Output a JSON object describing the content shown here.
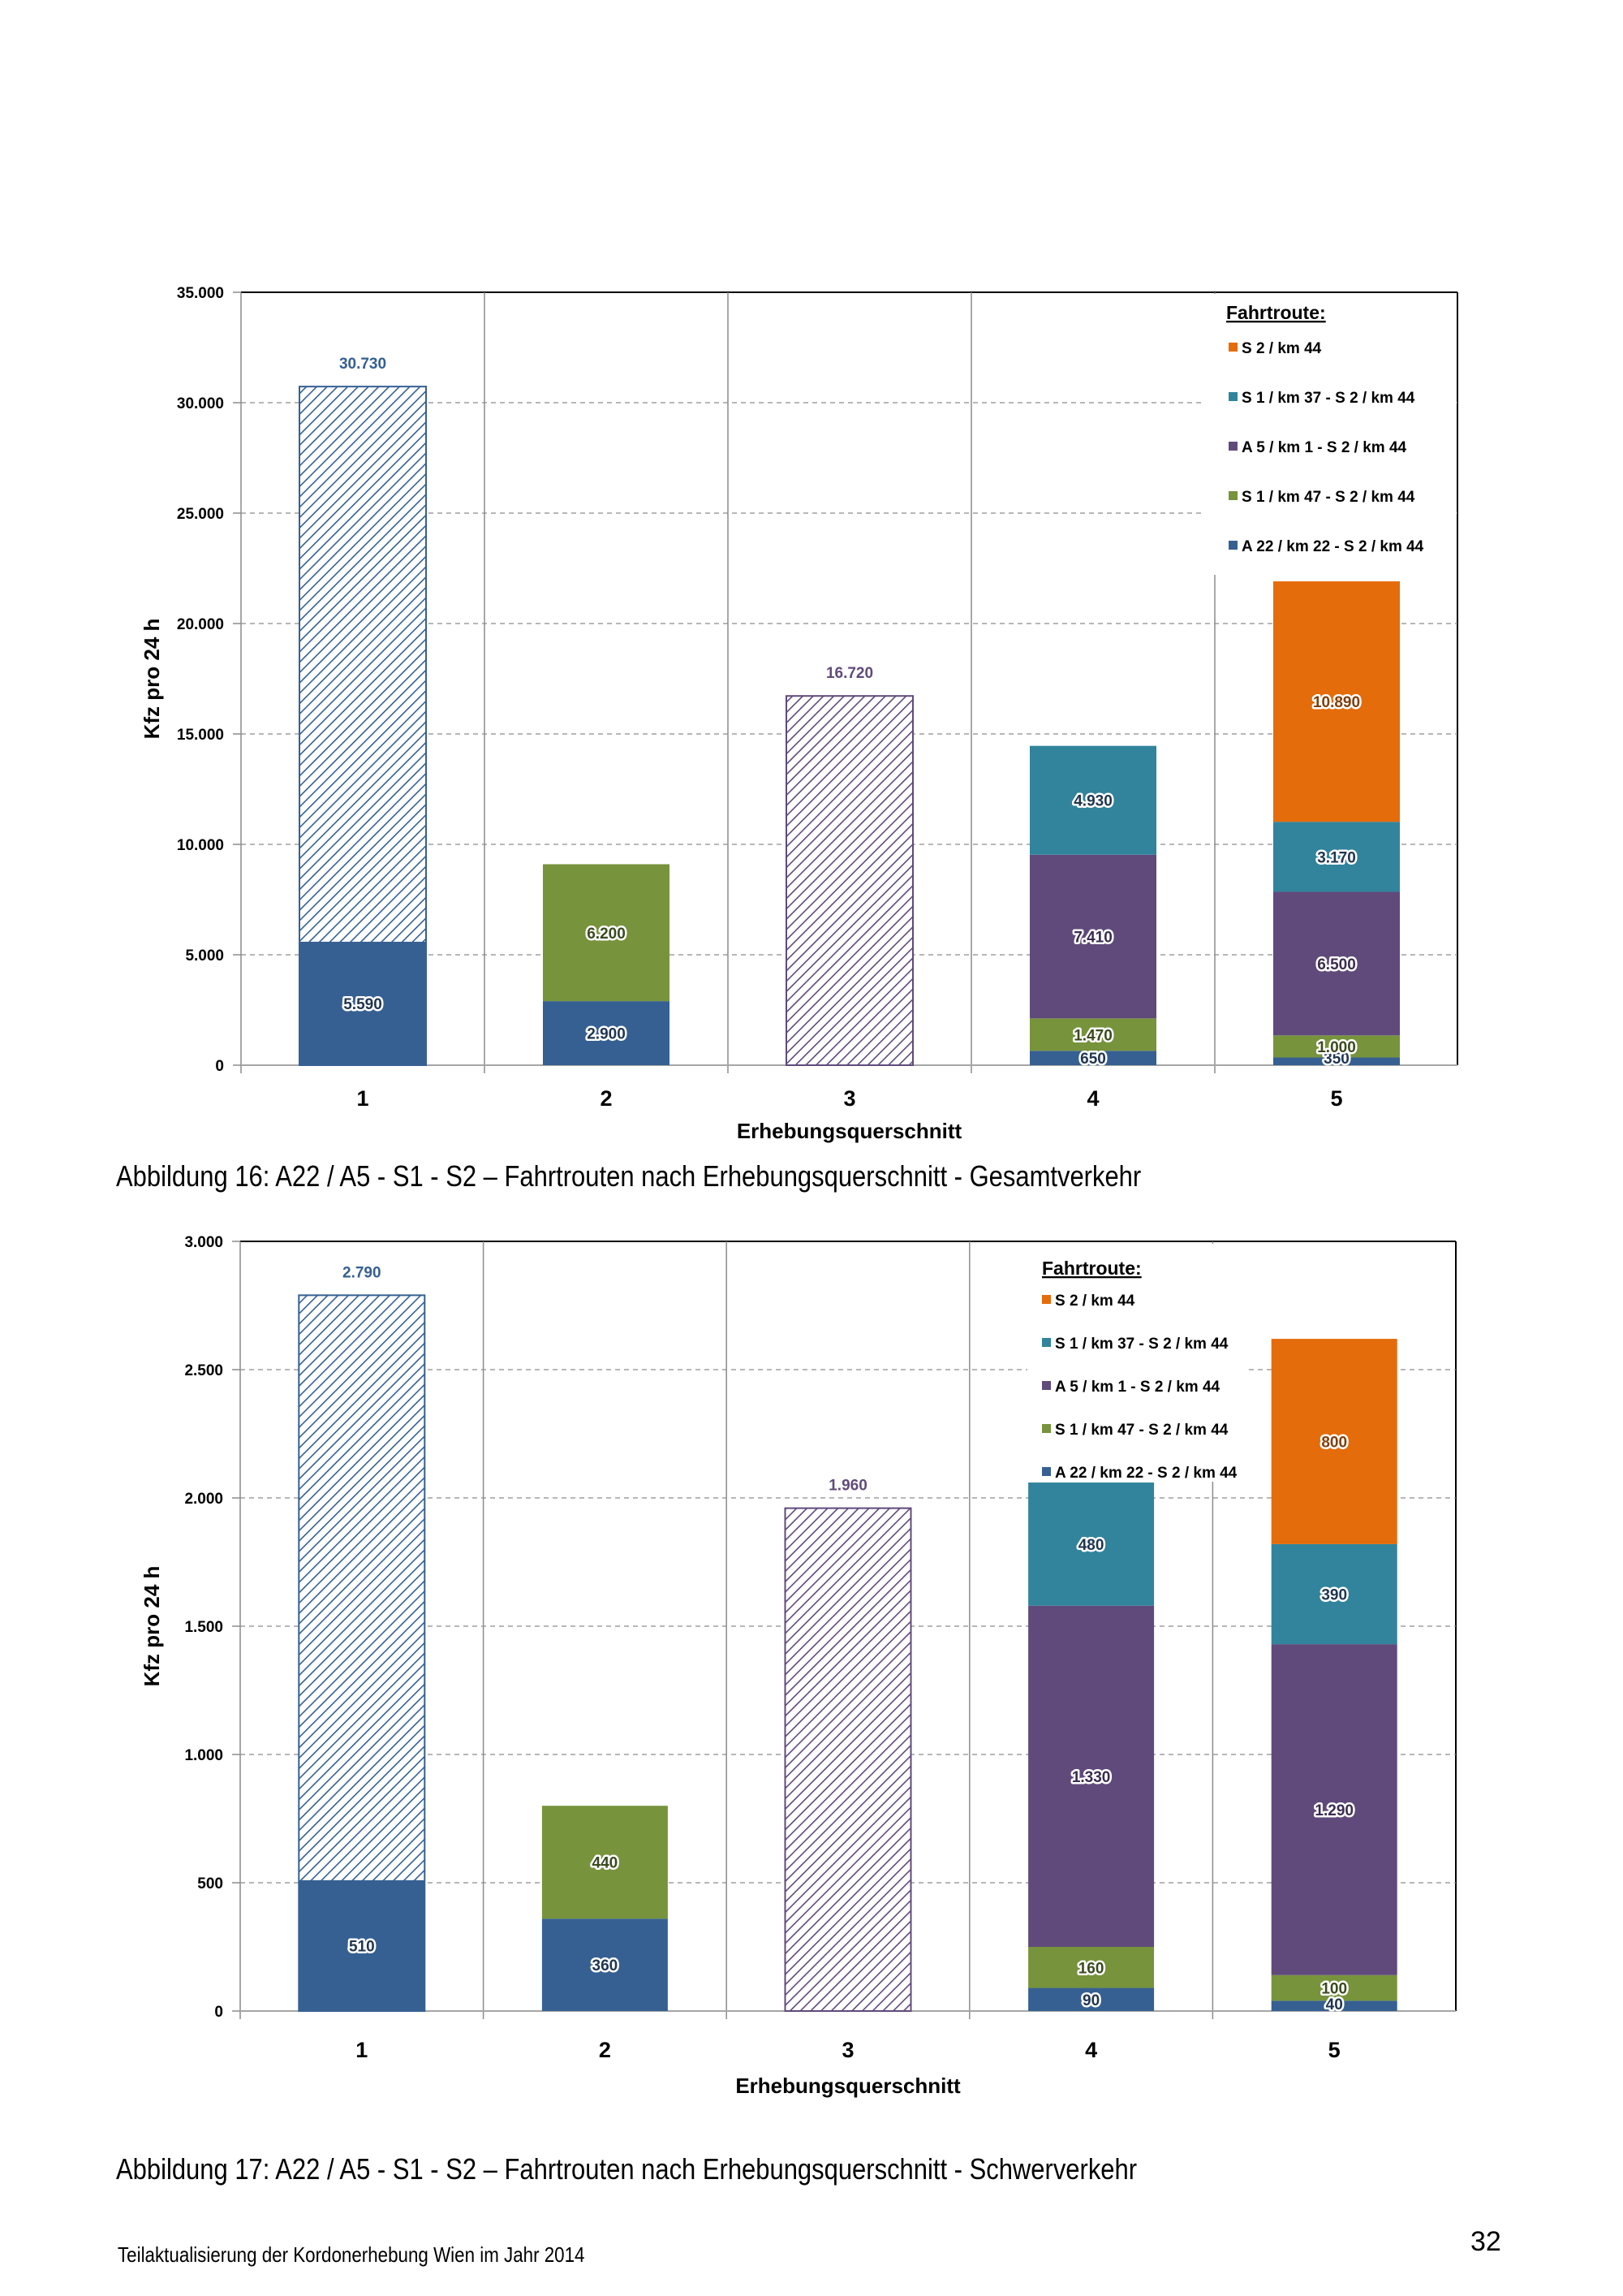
{
  "series_colors": {
    "A22": "#366092",
    "S1_47": "#77933C",
    "A5": "#604A7B",
    "S1_37": "#31849B",
    "S2": "#E46C0A"
  },
  "chart_data": [
    {
      "type": "bar",
      "stacked": true,
      "title": "",
      "xlabel": "Erhebungsquerschnitt",
      "ylabel": "Kfz pro 24 h",
      "ylim": [
        0,
        35000
      ],
      "yticks": [
        0,
        5000,
        10000,
        15000,
        20000,
        25000,
        30000,
        35000
      ],
      "ytick_labels": [
        "0",
        "5.000",
        "10.000",
        "15.000",
        "20.000",
        "25.000",
        "30.000",
        "35.000"
      ],
      "grid": "horizontal dashed",
      "legend_title": "Fahrtroute:",
      "legend_position": "top-right",
      "categories": [
        "1",
        "2",
        "3",
        "4",
        "5"
      ],
      "series": [
        {
          "key": "A22",
          "name": "A 22 / km 22 - S 2 / km 44",
          "values": [
            5590,
            2900,
            null,
            650,
            350
          ],
          "labels": [
            "5.590",
            "2.900",
            "",
            "650",
            "350"
          ]
        },
        {
          "key": "S1_47",
          "name": "S 1 / km 47 - S 2 / km 44",
          "values": [
            null,
            6200,
            null,
            1470,
            1000
          ],
          "labels": [
            "",
            "6.200",
            "",
            "1.470",
            "1.000"
          ]
        },
        {
          "key": "A5",
          "name": "A 5 / km 1 - S 2 / km 44",
          "values": [
            null,
            null,
            null,
            7410,
            6500
          ],
          "labels": [
            "",
            "",
            "",
            "7.410",
            "6.500"
          ]
        },
        {
          "key": "S1_37",
          "name": "S 1 / km 37 - S 2 / km 44",
          "values": [
            null,
            null,
            null,
            4930,
            3170
          ],
          "labels": [
            "",
            "",
            "",
            "4.930",
            "3.170"
          ]
        },
        {
          "key": "S2",
          "name": "S 2 / km 44",
          "values": [
            null,
            null,
            null,
            null,
            10890
          ],
          "labels": [
            "",
            "",
            "",
            "",
            "10.890"
          ]
        }
      ],
      "hatched_totals": [
        {
          "category": "1",
          "value": 30730,
          "label": "30.730",
          "color": "#366092"
        },
        {
          "category": "3",
          "value": 16720,
          "label": "16.720",
          "color": "#604A7B"
        }
      ],
      "legend_order": [
        "S2",
        "S1_37",
        "A5",
        "S1_47",
        "A22"
      ]
    },
    {
      "type": "bar",
      "stacked": true,
      "title": "",
      "xlabel": "Erhebungsquerschnitt",
      "ylabel": "Kfz pro 24 h",
      "ylim": [
        0,
        3000
      ],
      "yticks": [
        0,
        500,
        1000,
        1500,
        2000,
        2500,
        3000
      ],
      "ytick_labels": [
        "0",
        "500",
        "1.000",
        "1.500",
        "2.000",
        "2.500",
        "3.000"
      ],
      "grid": "horizontal dashed",
      "legend_title": "Fahrtroute:",
      "legend_position": "top-right",
      "categories": [
        "1",
        "2",
        "3",
        "4",
        "5"
      ],
      "series": [
        {
          "key": "A22",
          "name": "A 22 / km 22 - S 2 / km 44",
          "values": [
            510,
            360,
            null,
            90,
            40
          ],
          "labels": [
            "510",
            "360",
            "",
            "90",
            "40"
          ]
        },
        {
          "key": "S1_47",
          "name": "S 1 / km 47 - S 2 / km 44",
          "values": [
            null,
            440,
            null,
            160,
            100
          ],
          "labels": [
            "",
            "440",
            "",
            "160",
            "100"
          ]
        },
        {
          "key": "A5",
          "name": "A 5 / km 1 - S 2 / km 44",
          "values": [
            null,
            null,
            null,
            1330,
            1290
          ],
          "labels": [
            "",
            "",
            "",
            "1.330",
            "1.290"
          ]
        },
        {
          "key": "S1_37",
          "name": "S 1 / km 37 - S 2 / km 44",
          "values": [
            null,
            null,
            null,
            480,
            390
          ],
          "labels": [
            "",
            "",
            "",
            "480",
            "390"
          ]
        },
        {
          "key": "S2",
          "name": "S 2 / km 44",
          "values": [
            null,
            null,
            null,
            null,
            800
          ],
          "labels": [
            "",
            "",
            "",
            "",
            "800"
          ]
        }
      ],
      "hatched_totals": [
        {
          "category": "1",
          "value": 2790,
          "label": "2.790",
          "color": "#366092"
        },
        {
          "category": "3",
          "value": 1960,
          "label": "1.960",
          "color": "#604A7B"
        }
      ],
      "legend_order": [
        "S2",
        "S1_37",
        "A5",
        "S1_47",
        "A22"
      ]
    }
  ],
  "captions": {
    "fig16": "Abbildung 16: A22 / A5 - S1 - S2 – Fahrtrouten nach Erhebungsquerschnitt - Gesamtverkehr",
    "fig17": "Abbildung 17: A22 / A5 - S1 - S2 – Fahrtrouten nach Erhebungsquerschnitt - Schwerverkehr"
  },
  "footer": {
    "text": "Teilaktualisierung der Kordonerhebung Wien im Jahr 2014",
    "page_number": "32"
  }
}
